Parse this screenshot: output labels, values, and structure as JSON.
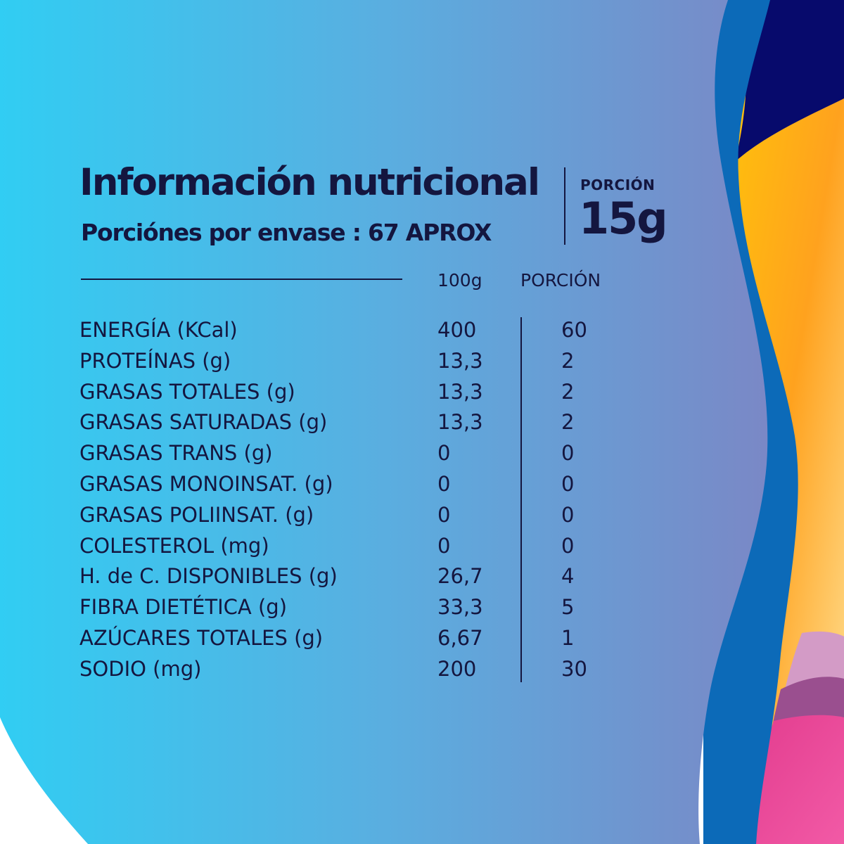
{
  "header": {
    "title": "Información nutricional",
    "servings_label": "Porciónes por envase :",
    "servings_value": "67 APROX",
    "portion_label": "PORCIÓN",
    "portion_value": "15g"
  },
  "table": {
    "columns": [
      "100g",
      "PORCIÓN"
    ],
    "rows": [
      {
        "name": "ENERGÍA (KCal)",
        "per100": "400",
        "portion": "60"
      },
      {
        "name": "PROTEÍNAS (g)",
        "per100": "13,3",
        "portion": "2"
      },
      {
        "name": "GRASAS TOTALES (g)",
        "per100": "13,3",
        "portion": "2"
      },
      {
        "name": "GRASAS SATURADAS (g)",
        "per100": "13,3",
        "portion": "2"
      },
      {
        "name": "GRASAS TRANS (g)",
        "per100": "0",
        "portion": "0"
      },
      {
        "name": "GRASAS MONOINSAT. (g)",
        "per100": "0",
        "portion": "0"
      },
      {
        "name": "GRASAS POLIINSAT. (g)",
        "per100": "0",
        "portion": "0"
      },
      {
        "name": "COLESTEROL (mg)",
        "per100": "0",
        "portion": "0"
      },
      {
        "name": "H. de C. DISPONIBLES (g)",
        "per100": "26,7",
        "portion": "4"
      },
      {
        "name": "FIBRA DIETÉTICA (g)",
        "per100": "33,3",
        "portion": "5"
      },
      {
        "name": "AZÚCARES TOTALES (g)",
        "per100": "6,67",
        "portion": "1"
      },
      {
        "name": "SODIO (mg)",
        "per100": "200",
        "portion": "30"
      }
    ]
  },
  "colors": {
    "text": "#14163f",
    "gradient_start": "#31cdf3",
    "gradient_end": "#7a88c6",
    "accent_blue": "#0c6ab8",
    "accent_navy": "#070a6c",
    "accent_yellow": "#ffc400",
    "accent_pink": "#ea3d94"
  }
}
